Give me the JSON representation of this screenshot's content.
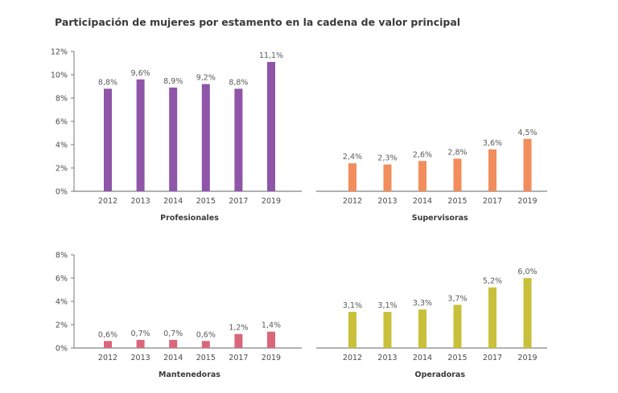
{
  "title": "Participación de mujeres por estamento en la cadena de valor principal",
  "chart_data": [
    {
      "type": "bar",
      "title": "Profesionales",
      "categories": [
        "2012",
        "2013",
        "2014",
        "2015",
        "2017",
        "2019"
      ],
      "values": [
        8.8,
        9.6,
        8.9,
        9.2,
        8.8,
        11.1
      ],
      "data_labels": [
        "8,8%",
        "9,6%",
        "8,9%",
        "9,2%",
        "8,8%",
        "11,1%"
      ],
      "ylim": [
        0,
        12
      ],
      "yticks": [
        "0%",
        "2%",
        "4%",
        "6%",
        "8%",
        "10%",
        "12%"
      ],
      "color": "#8e55a8"
    },
    {
      "type": "bar",
      "title": "Supervisoras",
      "categories": [
        "2012",
        "2013",
        "2014",
        "2015",
        "2017",
        "2019"
      ],
      "values": [
        2.4,
        2.3,
        2.6,
        2.8,
        3.6,
        4.5
      ],
      "data_labels": [
        "2,4%",
        "2,3%",
        "2,6%",
        "2,8%",
        "3,6%",
        "4,5%"
      ],
      "ylim": [
        0,
        12
      ],
      "color": "#f28d5c"
    },
    {
      "type": "bar",
      "title": "Mantenedoras",
      "categories": [
        "2012",
        "2013",
        "2014",
        "2015",
        "2017",
        "2019"
      ],
      "values": [
        0.6,
        0.7,
        0.7,
        0.6,
        1.2,
        1.4
      ],
      "data_labels": [
        "0,6%",
        "0,7%",
        "0,7%",
        "0,6%",
        "1,2%",
        "1,4%"
      ],
      "ylim": [
        0,
        8
      ],
      "yticks": [
        "0%",
        "2%",
        "4%",
        "6%",
        "8%"
      ],
      "color": "#d9677b"
    },
    {
      "type": "bar",
      "title": "Operadoras",
      "categories": [
        "2012",
        "2013",
        "2014",
        "2015",
        "2017",
        "2019"
      ],
      "values": [
        3.1,
        3.1,
        3.3,
        3.7,
        5.2,
        6.0
      ],
      "data_labels": [
        "3,1%",
        "3,1%",
        "3,3%",
        "3,7%",
        "5,2%",
        "6,0%"
      ],
      "ylim": [
        0,
        8
      ],
      "color": "#c8c03a"
    }
  ]
}
